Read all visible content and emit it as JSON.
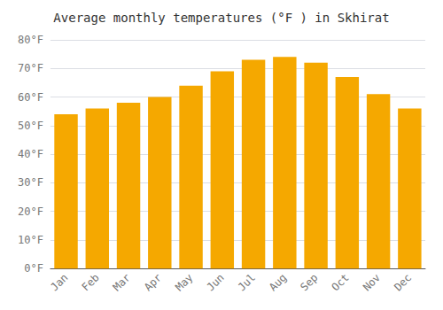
{
  "chart_data": {
    "type": "bar",
    "title": "Average monthly temperatures (°F ) in Skhirat",
    "categories": [
      "Jan",
      "Feb",
      "Mar",
      "Apr",
      "May",
      "Jun",
      "Jul",
      "Aug",
      "Sep",
      "Oct",
      "Nov",
      "Dec"
    ],
    "values": [
      54,
      56,
      58,
      60,
      64,
      69,
      73,
      74,
      72,
      67,
      61,
      56
    ],
    "color": "#F5A800",
    "ylim": [
      0,
      80
    ],
    "yticks": [
      {
        "value": 0,
        "label": "0°F"
      },
      {
        "value": 10,
        "label": "10°F"
      },
      {
        "value": 20,
        "label": "20°F"
      },
      {
        "value": 30,
        "label": "30°F"
      },
      {
        "value": 40,
        "label": "40°F"
      },
      {
        "value": 50,
        "label": "50°F"
      },
      {
        "value": 60,
        "label": "60°F"
      },
      {
        "value": 70,
        "label": "70°F"
      },
      {
        "value": 80,
        "label": "80°F"
      }
    ],
    "grid": true
  }
}
